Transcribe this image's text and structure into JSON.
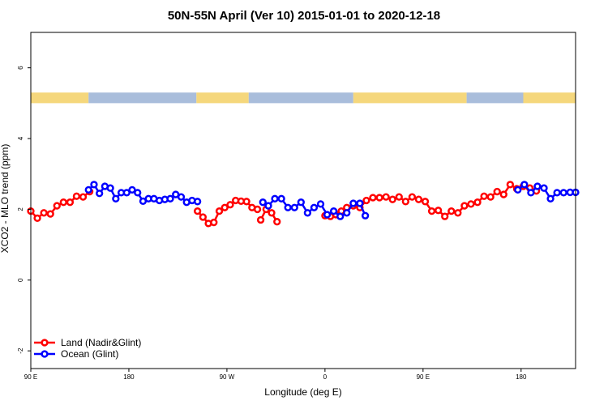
{
  "chart_data": {
    "type": "line",
    "title": "50N-55N April (Ver 10)   2015-01-01 to 2020-12-18",
    "xlabel": "Longitude (deg E)",
    "ylabel": "XCO2 - MLO trend (ppm)",
    "xlim": [
      90,
      590
    ],
    "ylim": [
      -2.5,
      7
    ],
    "x_ticks": [
      90,
      180,
      270,
      360,
      450,
      540
    ],
    "x_tick_labels": [
      "90 E",
      "180",
      "90 W",
      "0",
      "90 E",
      "180"
    ],
    "y_ticks": [
      -2,
      0,
      2,
      4,
      6
    ],
    "y_tick_labels": [
      "-2",
      "0",
      "2",
      "4",
      "6"
    ],
    "legend": {
      "position": "bottom-left"
    },
    "colors": {
      "land": "#ff0000",
      "ocean": "#0000ff",
      "land_mask": "#f5d77c",
      "ocean_mask": "#a9bddb"
    },
    "surface_band": {
      "y_range": [
        5.0,
        5.3
      ],
      "segments": [
        {
          "type": "land",
          "start": 90,
          "end": 143
        },
        {
          "type": "ocean",
          "start": 143,
          "end": 242
        },
        {
          "type": "land",
          "start": 242,
          "end": 290
        },
        {
          "type": "ocean",
          "start": 290,
          "end": 386
        },
        {
          "type": "land",
          "start": 386,
          "end": 490
        },
        {
          "type": "ocean",
          "start": 490,
          "end": 542
        },
        {
          "type": "land",
          "start": 542,
          "end": 590
        }
      ]
    },
    "series": [
      {
        "name": "Land (Nadir&Glint)",
        "color": "#ff0000",
        "segments": [
          {
            "x": [
              90,
              96,
              102,
              108,
              114,
              120,
              126,
              132,
              138,
              144
            ],
            "y": [
              1.95,
              1.75,
              1.9,
              1.87,
              2.1,
              2.2,
              2.2,
              2.37,
              2.35,
              2.5
            ]
          },
          {
            "x": [
              243,
              248,
              253,
              258,
              263,
              268,
              273,
              278,
              283,
              288,
              293,
              298
            ],
            "y": [
              1.95,
              1.78,
              1.6,
              1.63,
              1.95,
              2.05,
              2.13,
              2.25,
              2.23,
              2.22,
              2.05,
              2.0
            ]
          },
          {
            "x": [
              301,
              306,
              311,
              316
            ],
            "y": [
              1.7,
              2.0,
              1.9,
              1.65
            ]
          },
          {
            "x": [
              360,
              365,
              370,
              375,
              380,
              386,
              392,
              398,
              404,
              410,
              416,
              422,
              428,
              434,
              440,
              446,
              452,
              458,
              464,
              470,
              476,
              482,
              488,
              494,
              500,
              506,
              512,
              518,
              524,
              530,
              536,
              542,
              548,
              554
            ],
            "y": [
              1.82,
              1.8,
              1.85,
              1.95,
              2.05,
              2.1,
              2.05,
              2.25,
              2.33,
              2.33,
              2.35,
              2.28,
              2.35,
              2.22,
              2.35,
              2.28,
              2.22,
              1.95,
              1.97,
              1.8,
              1.95,
              1.9,
              2.1,
              2.15,
              2.2,
              2.37,
              2.35,
              2.5,
              2.42,
              2.7,
              2.58,
              2.65,
              2.6,
              2.52
            ]
          }
        ]
      },
      {
        "name": "Ocean (Glint)",
        "color": "#0000ff",
        "segments": [
          {
            "x": [
              143,
              148,
              153,
              158,
              163,
              168,
              173,
              178,
              183,
              188,
              193,
              198,
              203,
              208,
              213,
              218,
              223,
              228,
              233,
              238,
              243
            ],
            "y": [
              2.55,
              2.7,
              2.45,
              2.65,
              2.6,
              2.3,
              2.47,
              2.47,
              2.55,
              2.47,
              2.23,
              2.3,
              2.3,
              2.25,
              2.28,
              2.3,
              2.42,
              2.35,
              2.2,
              2.25,
              2.22
            ]
          },
          {
            "x": [
              303,
              308,
              314,
              320,
              326,
              332,
              338,
              344,
              350,
              356,
              362,
              368,
              374,
              380,
              386
            ],
            "y": [
              2.2,
              2.1,
              2.3,
              2.3,
              2.05,
              2.05,
              2.2,
              1.9,
              2.05,
              2.15,
              1.85,
              1.95,
              1.8,
              1.9,
              2.17
            ]
          },
          {
            "x": [
              392,
              397
            ],
            "y": [
              2.17,
              1.82
            ]
          },
          {
            "x": [
              537,
              543,
              549,
              555,
              561,
              567,
              573,
              579,
              585,
              590
            ],
            "y": [
              2.55,
              2.7,
              2.47,
              2.65,
              2.6,
              2.3,
              2.47,
              2.47,
              2.48,
              2.48
            ]
          }
        ]
      }
    ]
  }
}
